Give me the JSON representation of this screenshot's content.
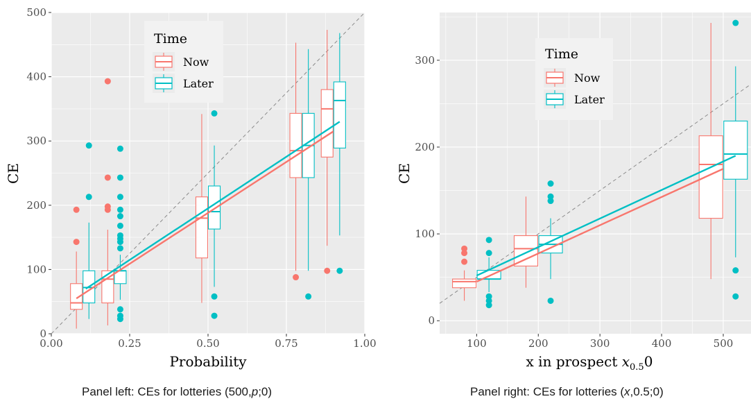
{
  "chart_data": [
    {
      "type": "box",
      "xlabel": "Probability",
      "ylabel": "CE",
      "xlim": [
        0,
        1
      ],
      "ylim": [
        0,
        500
      ],
      "x_ticks": [
        0,
        0.25,
        0.5,
        0.75,
        1.0
      ],
      "x_tick_labels": [
        "0.00",
        "0.25",
        "0.50",
        "0.75",
        "1.00"
      ],
      "y_ticks": [
        0,
        100,
        200,
        300,
        400,
        500
      ],
      "y_tick_labels": [
        "0",
        "100",
        "200",
        "300",
        "400",
        "500"
      ],
      "reference_line": "y = 500 * x (dashed)",
      "legend": {
        "title": "Time",
        "position": "top-left",
        "entries": [
          "Now",
          "Later"
        ]
      },
      "series": [
        {
          "name": "Now",
          "color": "#F8766D",
          "boxes": [
            {
              "x": 0.08,
              "q1": 38,
              "median": 48,
              "q3": 78,
              "whisker_low": 8,
              "whisker_high": 128,
              "outliers": [
                143,
                193
              ]
            },
            {
              "x": 0.18,
              "q1": 48,
              "median": 85,
              "q3": 98,
              "whisker_low": 13,
              "whisker_high": 162,
              "outliers": [
                193,
                198,
                243,
                393
              ]
            },
            {
              "x": 0.48,
              "q1": 118,
              "median": 180,
              "q3": 213,
              "whisker_low": 48,
              "whisker_high": 342,
              "outliers": []
            },
            {
              "x": 0.78,
              "q1": 243,
              "median": 285,
              "q3": 343,
              "whisker_low": 98,
              "whisker_high": 453,
              "outliers": [
                88
              ]
            },
            {
              "x": 0.88,
              "q1": 275,
              "median": 350,
              "q3": 380,
              "whisker_low": 137,
              "whisker_high": 473,
              "outliers": [
                98
              ]
            }
          ],
          "fit_line": {
            "x": [
              0.08,
              0.9
            ],
            "y": [
              55,
              315
            ]
          }
        },
        {
          "name": "Later",
          "color": "#00BFC4",
          "boxes": [
            {
              "x": 0.12,
              "q1": 48,
              "median": 72,
              "q3": 98,
              "whisker_low": 23,
              "whisker_high": 173,
              "outliers": [
                213,
                293
              ]
            },
            {
              "x": 0.22,
              "q1": 78,
              "median": 98,
              "q3": 98,
              "whisker_low": 53,
              "whisker_high": 123,
              "outliers": [
                23,
                28,
                38,
                133,
                143,
                148,
                153,
                168,
                183,
                193,
                213,
                243,
                288
              ]
            },
            {
              "x": 0.52,
              "q1": 163,
              "median": 190,
              "q3": 230,
              "whisker_low": 73,
              "whisker_high": 293,
              "outliers": [
                28,
                58,
                343
              ]
            },
            {
              "x": 0.82,
              "q1": 243,
              "median": 293,
              "q3": 343,
              "whisker_low": 98,
              "whisker_high": 443,
              "outliers": [
                58
              ]
            },
            {
              "x": 0.92,
              "q1": 289,
              "median": 363,
              "q3": 392,
              "whisker_low": 153,
              "whisker_high": 468,
              "outliers": [
                98
              ]
            }
          ],
          "fit_line": {
            "x": [
              0.11,
              0.92
            ],
            "y": [
              70,
              330
            ]
          }
        }
      ]
    },
    {
      "type": "box",
      "xlabel": "x in prospect ",
      "xlabel_math": "x",
      "xlabel_math_sub": "0.5",
      "xlabel_math_end": "0",
      "ylabel": "CE",
      "xlim": [
        40,
        545
      ],
      "ylim": [
        -15,
        355
      ],
      "x_ticks": [
        100,
        200,
        300,
        400,
        500
      ],
      "x_tick_labels": [
        "100",
        "200",
        "300",
        "400",
        "500"
      ],
      "y_ticks": [
        0,
        100,
        200,
        300
      ],
      "y_tick_labels": [
        "0",
        "100",
        "200",
        "300"
      ],
      "reference_line": "y = 0.5 * x (dashed)",
      "legend": {
        "title": "Time",
        "position": "top-left",
        "entries": [
          "Now",
          "Later"
        ]
      },
      "series": [
        {
          "name": "Now",
          "color": "#F8766D",
          "boxes": [
            {
              "x": 80,
              "q1": 38,
              "median": 45,
              "q3": 48,
              "whisker_low": 23,
              "whisker_high": 58,
              "outliers": [
                68,
                78,
                83
              ]
            },
            {
              "x": 180,
              "q1": 63,
              "median": 83,
              "q3": 98,
              "whisker_low": 38,
              "whisker_high": 143,
              "outliers": []
            },
            {
              "x": 480,
              "q1": 118,
              "median": 180,
              "q3": 213,
              "whisker_low": 48,
              "whisker_high": 343,
              "outliers": []
            }
          ],
          "fit_line": {
            "x": [
              100,
              500
            ],
            "y": [
              45,
              175
            ]
          }
        },
        {
          "name": "Later",
          "color": "#00BFC4",
          "boxes": [
            {
              "x": 120,
              "q1": 48,
              "median": 48,
              "q3": 58,
              "whisker_low": 33,
              "whisker_high": 73,
              "outliers": [
                18,
                23,
                28,
                78,
                93
              ]
            },
            {
              "x": 220,
              "q1": 78,
              "median": 88,
              "q3": 98,
              "whisker_low": 48,
              "whisker_high": 118,
              "outliers": [
                23,
                138,
                143,
                158
              ]
            },
            {
              "x": 520,
              "q1": 163,
              "median": 192,
              "q3": 230,
              "whisker_low": 73,
              "whisker_high": 293,
              "outliers": [
                28,
                58,
                343
              ]
            }
          ],
          "fit_line": {
            "x": [
              100,
              520
            ],
            "y": [
              52,
              190
            ]
          }
        }
      ]
    }
  ],
  "captions": {
    "left_prefix": "Panel left: CEs for lotteries (500,",
    "left_var": "p",
    "left_suffix": ";0)",
    "right_prefix": "Panel right: CEs for lotteries (",
    "right_var": "x",
    "right_suffix": ",0.5;0)"
  }
}
